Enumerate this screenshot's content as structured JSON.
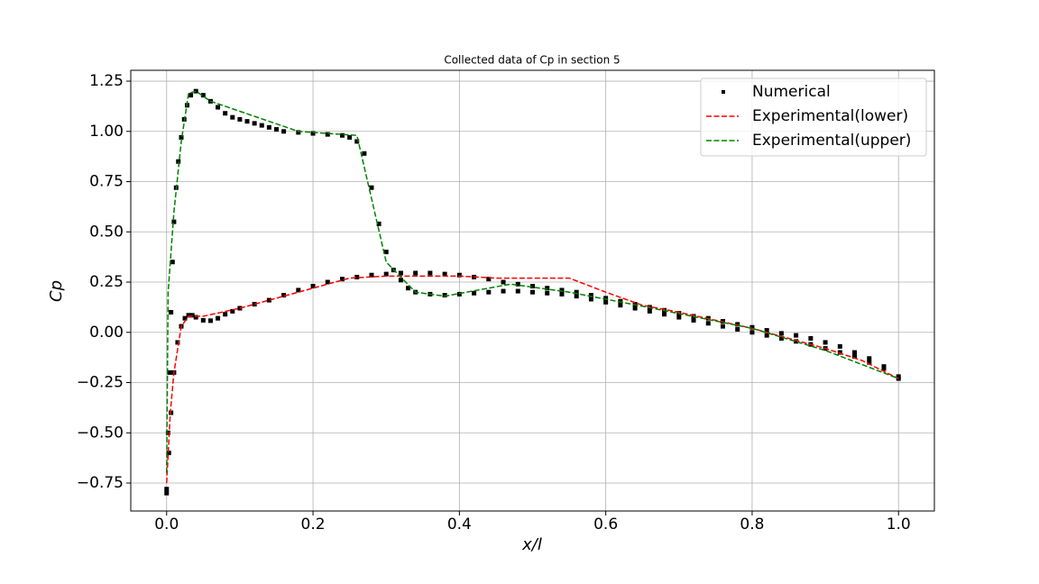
{
  "chart_data": {
    "type": "line",
    "title": "Collected data of Cp in section 5",
    "xlabel": "x/l",
    "ylabel": "Cp",
    "xlim": [
      -0.049,
      1.049
    ],
    "ylim": [
      -0.889,
      1.304
    ],
    "xticks": [
      {
        "value": 0,
        "label": "0.0"
      },
      0.2,
      0.4,
      0.6,
      0.8,
      {
        "value": 1,
        "label": "1.0"
      }
    ],
    "yticks": [
      {
        "value": -0.75,
        "label": "−0.75"
      },
      {
        "value": -0.5,
        "label": "−0.50"
      },
      {
        "value": -0.25,
        "label": "−0.25"
      },
      {
        "value": 0,
        "label": "0.00"
      },
      0.25,
      {
        "value": 0.5,
        "label": "0.50"
      },
      0.75,
      {
        "value": 1,
        "label": "1.00"
      },
      1.25
    ],
    "grid": true,
    "legend": "upper right",
    "series": [
      {
        "name": "Numerical",
        "color": "#000000",
        "mode": "markers",
        "x": [
          0.0,
          0.002,
          0.004,
          0.006,
          0.008,
          0.01,
          0.013,
          0.016,
          0.02,
          0.024,
          0.028,
          0.033,
          0.04,
          0.05,
          0.06,
          0.07,
          0.08,
          0.09,
          0.1,
          0.11,
          0.12,
          0.13,
          0.14,
          0.15,
          0.16,
          0.18,
          0.2,
          0.22,
          0.24,
          0.25,
          0.26,
          0.27,
          0.28,
          0.29,
          0.3,
          0.31,
          0.32,
          0.33,
          0.34,
          0.36,
          0.38,
          0.4,
          0.42,
          0.44,
          0.46,
          0.48,
          0.5,
          0.52,
          0.54,
          0.56,
          0.58,
          0.6,
          0.62,
          0.64,
          0.66,
          0.68,
          0.7,
          0.72,
          0.74,
          0.76,
          0.78,
          0.8,
          0.82,
          0.84,
          0.86,
          0.88,
          0.9,
          0.92,
          0.94,
          0.96,
          0.98,
          1.0,
          0.0,
          0.003,
          0.006,
          0.01,
          0.015,
          0.02,
          0.025,
          0.03,
          0.035,
          0.04,
          0.05,
          0.06,
          0.07,
          0.08,
          0.09,
          0.1,
          0.12,
          0.14,
          0.16,
          0.18,
          0.2,
          0.22,
          0.24,
          0.26,
          0.28,
          0.3,
          0.32,
          0.34,
          0.36,
          0.38,
          0.4,
          0.42,
          0.44,
          0.46,
          0.48,
          0.5,
          0.52,
          0.54,
          0.56,
          0.58,
          0.6,
          0.62,
          0.64,
          0.66,
          0.68,
          0.7,
          0.72,
          0.74,
          0.76,
          0.78,
          0.8,
          0.82,
          0.84,
          0.86,
          0.88,
          0.9,
          0.92,
          0.94,
          0.96,
          0.98,
          1.0
        ],
        "values": [
          -0.78,
          -0.5,
          -0.2,
          0.1,
          0.35,
          0.55,
          0.72,
          0.85,
          0.97,
          1.06,
          1.13,
          1.18,
          1.2,
          1.18,
          1.15,
          1.12,
          1.09,
          1.07,
          1.06,
          1.05,
          1.04,
          1.03,
          1.02,
          1.01,
          1.0,
          0.995,
          0.99,
          0.985,
          0.98,
          0.97,
          0.95,
          0.89,
          0.72,
          0.54,
          0.4,
          0.31,
          0.26,
          0.22,
          0.2,
          0.19,
          0.185,
          0.19,
          0.195,
          0.2,
          0.205,
          0.205,
          0.2,
          0.195,
          0.19,
          0.18,
          0.165,
          0.15,
          0.135,
          0.12,
          0.105,
          0.09,
          0.075,
          0.06,
          0.045,
          0.03,
          0.015,
          0.0,
          -0.015,
          -0.03,
          -0.045,
          -0.06,
          -0.08,
          -0.1,
          -0.12,
          -0.15,
          -0.18,
          -0.22,
          -0.8,
          -0.6,
          -0.4,
          -0.2,
          -0.05,
          0.03,
          0.07,
          0.085,
          0.085,
          0.075,
          0.06,
          0.058,
          0.07,
          0.09,
          0.105,
          0.12,
          0.14,
          0.16,
          0.185,
          0.21,
          0.23,
          0.25,
          0.265,
          0.275,
          0.285,
          0.29,
          0.295,
          0.295,
          0.295,
          0.29,
          0.285,
          0.275,
          0.265,
          0.25,
          0.24,
          0.23,
          0.22,
          0.21,
          0.2,
          0.185,
          0.17,
          0.155,
          0.14,
          0.125,
          0.11,
          0.095,
          0.08,
          0.07,
          0.055,
          0.04,
          0.025,
          0.01,
          -0.005,
          -0.015,
          -0.03,
          -0.05,
          -0.07,
          -0.1,
          -0.13,
          -0.17,
          -0.23
        ]
      },
      {
        "name": "Experimental(lower)",
        "color": "#ff0000",
        "mode": "dashed",
        "x": [
          0.0,
          0.005,
          0.01,
          0.02,
          0.03,
          0.05,
          0.1,
          0.2,
          0.25,
          0.3,
          0.4,
          0.45,
          0.55,
          0.6,
          0.65,
          0.7,
          0.8,
          0.9,
          0.95,
          1.0
        ],
        "values": [
          -0.75,
          -0.4,
          -0.2,
          0.03,
          0.08,
          0.08,
          0.12,
          0.22,
          0.27,
          0.28,
          0.28,
          0.27,
          0.27,
          0.2,
          0.135,
          0.1,
          0.02,
          -0.08,
          -0.14,
          -0.23
        ]
      },
      {
        "name": "Experimental(upper)",
        "color": "#008000",
        "mode": "dashed",
        "x": [
          0.0,
          0.002,
          0.01,
          0.02,
          0.03,
          0.04,
          0.06,
          0.1,
          0.18,
          0.22,
          0.26,
          0.3,
          0.34,
          0.38,
          0.47,
          0.55,
          0.65,
          0.8,
          0.9,
          1.0
        ],
        "values": [
          -0.7,
          0.2,
          0.6,
          0.95,
          1.19,
          1.2,
          1.15,
          1.1,
          1.0,
          0.99,
          0.98,
          0.35,
          0.2,
          0.18,
          0.24,
          0.2,
          0.13,
          0.02,
          -0.09,
          -0.23
        ]
      }
    ]
  }
}
